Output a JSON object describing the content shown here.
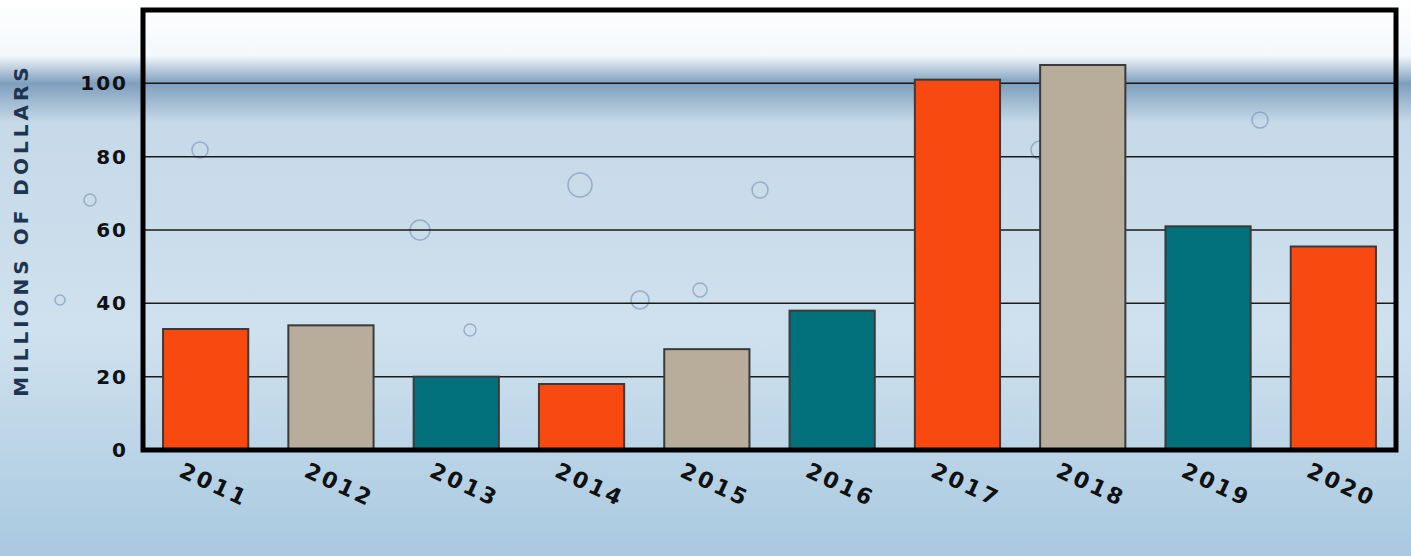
{
  "chart_data": {
    "type": "bar",
    "y_label": "MILLIONS OF DOLLARS",
    "categories": [
      "2011",
      "2012",
      "2013",
      "2014",
      "2015",
      "2016",
      "2017",
      "2018",
      "2019",
      "2020"
    ],
    "values": [
      33,
      34,
      20,
      18,
      27.5,
      38,
      101,
      105,
      61,
      55.5
    ],
    "colors": [
      "#f84a10",
      "#b8ad9b",
      "#03717b",
      "#f84a10",
      "#b8ad9b",
      "#03717b",
      "#f84a10",
      "#b8ad9b",
      "#03717b",
      "#f84a10"
    ],
    "ylim": [
      0,
      120
    ],
    "yticks": [
      0,
      20,
      40,
      60,
      80,
      100
    ],
    "grid": true
  }
}
